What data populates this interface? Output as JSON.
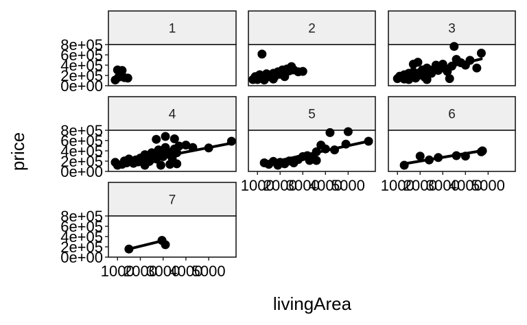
{
  "chart_data": {
    "type": "scatter",
    "facet_variable": "",
    "xlabel": "livingArea",
    "ylabel": "price",
    "xlim": [
      600,
      6200
    ],
    "ylim": [
      0,
      800000
    ],
    "x_ticks": [
      1000,
      2000,
      3000,
      4000,
      5000
    ],
    "x_tick_labels": [
      "1000",
      "2000",
      "3000",
      "4000",
      "5000"
    ],
    "y_ticks": [
      0,
      200000,
      400000,
      600000,
      800000
    ],
    "y_tick_labels": [
      "0e+00",
      "2e+05",
      "4e+05",
      "6e+05",
      "8e+05"
    ],
    "grid": false,
    "legend": "none",
    "point_color": "#000000",
    "strip_fill": "#efefef",
    "panels": [
      {
        "label": "1",
        "points": [
          [
            900,
            90000
          ],
          [
            1000,
            300000
          ],
          [
            1100,
            250000
          ],
          [
            1200,
            290000
          ],
          [
            1300,
            140000
          ],
          [
            1450,
            130000
          ],
          [
            1050,
            150000
          ]
        ],
        "fit": null
      },
      {
        "label": "2",
        "points": [
          [
            800,
            100000
          ],
          [
            900,
            160000
          ],
          [
            1000,
            130000
          ],
          [
            1100,
            200000
          ],
          [
            1200,
            170000
          ],
          [
            1300,
            120000
          ],
          [
            1400,
            220000
          ],
          [
            1500,
            190000
          ],
          [
            1600,
            150000
          ],
          [
            1700,
            230000
          ],
          [
            1800,
            180000
          ],
          [
            1900,
            260000
          ],
          [
            2000,
            210000
          ],
          [
            2100,
            300000
          ],
          [
            2200,
            250000
          ],
          [
            2300,
            320000
          ],
          [
            2400,
            280000
          ],
          [
            2500,
            370000
          ],
          [
            2600,
            300000
          ],
          [
            2800,
            260000
          ],
          [
            3000,
            270000
          ],
          [
            2200,
            160000
          ],
          [
            1700,
            110000
          ],
          [
            1300,
            90000
          ],
          [
            1000,
            100000
          ],
          [
            1200,
            630000
          ]
        ],
        "fit": null
      },
      {
        "label": "3",
        "points": [
          [
            1000,
            120000
          ],
          [
            1100,
            170000
          ],
          [
            1200,
            140000
          ],
          [
            1300,
            200000
          ],
          [
            1400,
            160000
          ],
          [
            1500,
            230000
          ],
          [
            1600,
            190000
          ],
          [
            1700,
            260000
          ],
          [
            1800,
            220000
          ],
          [
            1900,
            180000
          ],
          [
            2000,
            250000
          ],
          [
            2100,
            300000
          ],
          [
            2200,
            260000
          ],
          [
            2300,
            340000
          ],
          [
            2400,
            280000
          ],
          [
            2500,
            230000
          ],
          [
            2600,
            310000
          ],
          [
            2700,
            400000
          ],
          [
            2800,
            290000
          ],
          [
            2900,
            360000
          ],
          [
            3000,
            420000
          ],
          [
            3100,
            330000
          ],
          [
            3200,
            270000
          ],
          [
            3300,
            120000
          ],
          [
            3400,
            380000
          ],
          [
            3600,
            520000
          ],
          [
            3800,
            450000
          ],
          [
            4000,
            400000
          ],
          [
            4200,
            500000
          ],
          [
            4500,
            340000
          ],
          [
            4700,
            650000
          ],
          [
            3500,
            790000
          ],
          [
            1700,
            420000
          ],
          [
            1900,
            460000
          ],
          [
            2300,
            100000
          ],
          [
            1500,
            100000
          ],
          [
            1300,
            110000
          ],
          [
            2200,
            150000
          ],
          [
            1800,
            130000
          ]
        ],
        "fit": [
          [
            1000,
            110000
          ],
          [
            4700,
            530000
          ]
        ]
      },
      {
        "label": "4",
        "points": [
          [
            900,
            160000
          ],
          [
            1000,
            100000
          ],
          [
            1200,
            120000
          ],
          [
            1300,
            190000
          ],
          [
            1400,
            150000
          ],
          [
            1500,
            230000
          ],
          [
            1600,
            180000
          ],
          [
            1700,
            140000
          ],
          [
            1800,
            210000
          ],
          [
            1900,
            170000
          ],
          [
            2000,
            250000
          ],
          [
            2100,
            200000
          ],
          [
            2200,
            320000
          ],
          [
            2300,
            260000
          ],
          [
            2400,
            180000
          ],
          [
            2500,
            360000
          ],
          [
            2600,
            300000
          ],
          [
            2700,
            230000
          ],
          [
            2800,
            420000
          ],
          [
            2900,
            340000
          ],
          [
            3000,
            280000
          ],
          [
            3100,
            470000
          ],
          [
            3200,
            380000
          ],
          [
            3300,
            320000
          ],
          [
            3400,
            250000
          ],
          [
            3500,
            440000
          ],
          [
            3600,
            360000
          ],
          [
            3700,
            500000
          ],
          [
            4000,
            520000
          ],
          [
            4300,
            470000
          ],
          [
            5000,
            460000
          ],
          [
            6000,
            600000
          ],
          [
            2700,
            640000
          ],
          [
            3100,
            700000
          ],
          [
            3500,
            650000
          ],
          [
            2200,
            100000
          ],
          [
            2900,
            100000
          ],
          [
            3300,
            120000
          ],
          [
            3600,
            130000
          ]
        ],
        "fit": [
          [
            900,
            90000
          ],
          [
            6000,
            560000
          ]
        ]
      },
      {
        "label": "5",
        "points": [
          [
            1300,
            150000
          ],
          [
            1500,
            120000
          ],
          [
            1700,
            180000
          ],
          [
            1900,
            100000
          ],
          [
            2000,
            160000
          ],
          [
            2200,
            130000
          ],
          [
            2400,
            190000
          ],
          [
            2600,
            150000
          ],
          [
            2800,
            220000
          ],
          [
            3000,
            280000
          ],
          [
            3200,
            300000
          ],
          [
            3400,
            260000
          ],
          [
            3600,
            380000
          ],
          [
            3800,
            520000
          ],
          [
            4000,
            440000
          ],
          [
            4200,
            780000
          ],
          [
            5000,
            800000
          ],
          [
            4900,
            540000
          ],
          [
            5900,
            600000
          ],
          [
            3300,
            200000
          ],
          [
            3600,
            200000
          ],
          [
            4400,
            420000
          ]
        ],
        "fit": [
          [
            1300,
            130000
          ],
          [
            5900,
            600000
          ]
        ]
      },
      {
        "label": "6",
        "points": [
          [
            1300,
            100000
          ],
          [
            2000,
            290000
          ],
          [
            2400,
            210000
          ],
          [
            2800,
            260000
          ],
          [
            3600,
            300000
          ],
          [
            4000,
            290000
          ],
          [
            4700,
            380000
          ],
          [
            4750,
            400000
          ]
        ],
        "fit": [
          [
            1300,
            130000
          ],
          [
            4700,
            400000
          ]
        ]
      },
      {
        "label": "7",
        "points": [
          [
            1500,
            140000
          ],
          [
            2950,
            320000
          ],
          [
            3100,
            230000
          ]
        ],
        "fit": [
          [
            1500,
            140000
          ],
          [
            2950,
            310000
          ]
        ]
      }
    ]
  }
}
